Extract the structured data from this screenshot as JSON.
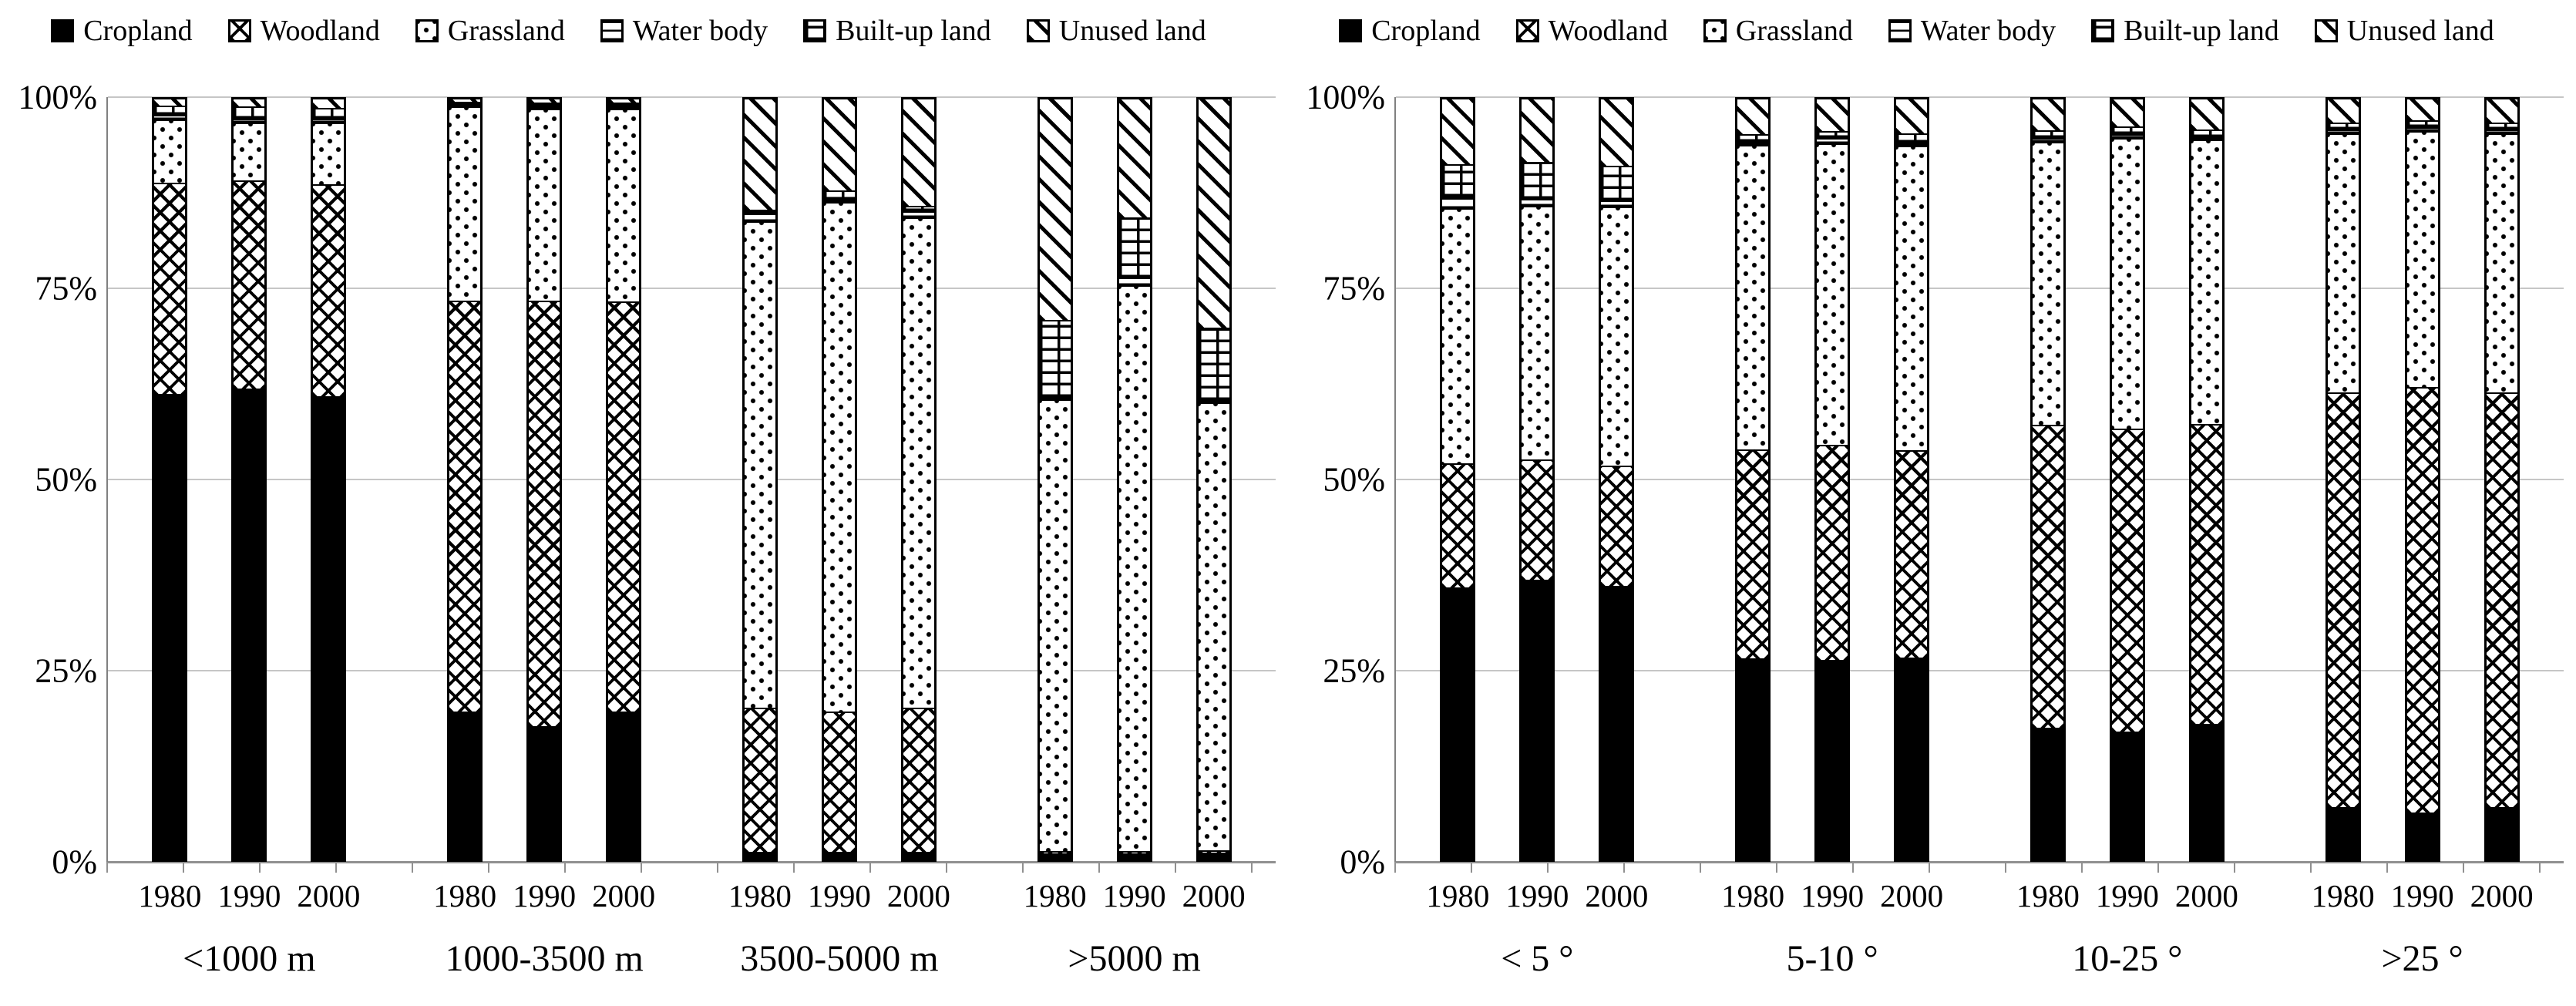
{
  "colors": {
    "foreground": "#000000",
    "background": "#ffffff",
    "gridline": "#c6c6c6",
    "axis": "#808080"
  },
  "legend": {
    "position": "top",
    "items": [
      {
        "label": "Cropland",
        "pattern": "solid"
      },
      {
        "label": "Woodland",
        "pattern": "crosshatch"
      },
      {
        "label": "Grassland",
        "pattern": "dots"
      },
      {
        "label": "Water body",
        "pattern": "hlines"
      },
      {
        "label": "Built-up land",
        "pattern": "brick"
      },
      {
        "label": "Unused land",
        "pattern": "diag"
      }
    ]
  },
  "chart_data": [
    {
      "type": "bar",
      "variant": "stacked-100-percent",
      "title": "",
      "xlabel": "",
      "ylabel": "",
      "ylim": [
        0,
        100
      ],
      "grid": true,
      "y_tick_labels": [
        "0%",
        "25%",
        "50%",
        "75%",
        "100%"
      ],
      "series_order": [
        "Cropland",
        "Woodland",
        "Grassland",
        "Water body",
        "Built-up land",
        "Unused land"
      ],
      "categories": [
        "<1000 m",
        "1000-3500 m",
        "3500-5000 m",
        ">5000 m"
      ],
      "years": [
        "1980",
        "1990",
        "2000"
      ],
      "groups": [
        {
          "category": "<1000 m",
          "bars": [
            {
              "year": "1980",
              "values": [
                61.3,
                27.7,
                8.4,
                0.6,
                1.2,
                0.8
              ]
            },
            {
              "year": "1990",
              "values": [
                62.0,
                27.3,
                7.7,
                0.5,
                1.6,
                0.9
              ]
            },
            {
              "year": "2000",
              "values": [
                61.0,
                27.8,
                8.2,
                0.5,
                1.4,
                1.1
              ]
            }
          ]
        },
        {
          "category": "1000-3500 m",
          "bars": [
            {
              "year": "1980",
              "values": [
                19.5,
                54.0,
                25.6,
                0.3,
                0.3,
                0.3
              ]
            },
            {
              "year": "1990",
              "values": [
                17.5,
                56.0,
                25.3,
                0.3,
                0.5,
                0.4
              ]
            },
            {
              "year": "2000",
              "values": [
                19.5,
                53.9,
                25.4,
                0.4,
                0.4,
                0.4
              ]
            }
          ]
        },
        {
          "category": "3500-5000 m",
          "bars": [
            {
              "year": "1980",
              "values": [
                1.0,
                19.0,
                64.0,
                1.0,
                0.5,
                14.5
              ]
            },
            {
              "year": "1990",
              "values": [
                1.0,
                18.5,
                67.0,
                0.3,
                1.2,
                12.0
              ]
            },
            {
              "year": "2000",
              "values": [
                1.0,
                19.0,
                64.5,
                0.8,
                0.7,
                14.0
              ]
            }
          ]
        },
        {
          "category": ">5000 m",
          "bars": [
            {
              "year": "1980",
              "values": [
                0.8,
                0.3,
                59.4,
                0.4,
                10.1,
                29.0
              ]
            },
            {
              "year": "1990",
              "values": [
                0.8,
                0.3,
                74.5,
                1.0,
                7.9,
                15.5
              ]
            },
            {
              "year": "2000",
              "values": [
                0.9,
                0.3,
                58.9,
                0.3,
                9.6,
                30.0
              ]
            }
          ]
        }
      ]
    },
    {
      "type": "bar",
      "variant": "stacked-100-percent",
      "title": "",
      "xlabel": "",
      "ylabel": "",
      "ylim": [
        0,
        100
      ],
      "grid": true,
      "y_tick_labels": [
        "0%",
        "25%",
        "50%",
        "75%",
        "100%"
      ],
      "series_order": [
        "Cropland",
        "Woodland",
        "Grassland",
        "Water body",
        "Built-up land",
        "Unused land"
      ],
      "categories": [
        "< 5 °",
        "5-10 °",
        "10-25 °",
        ">25 °"
      ],
      "years": [
        "1980",
        "1990",
        "2000"
      ],
      "groups": [
        {
          "category": "< 5 °",
          "bars": [
            {
              "year": "1980",
              "values": [
                35.8,
                16.3,
                33.6,
                1.5,
                4.3,
                8.5
              ]
            },
            {
              "year": "1990",
              "values": [
                36.8,
                15.8,
                33.4,
                0.9,
                4.9,
                8.2
              ]
            },
            {
              "year": "2000",
              "values": [
                36.0,
                15.8,
                34.1,
                0.8,
                4.6,
                8.7
              ]
            }
          ]
        },
        {
          "category": "5-10 °",
          "bars": [
            {
              "year": "1980",
              "values": [
                26.5,
                27.5,
                40.0,
                0.4,
                1.0,
                4.6
              ]
            },
            {
              "year": "1990",
              "values": [
                26.3,
                28.3,
                39.6,
                0.7,
                0.9,
                4.2
              ]
            },
            {
              "year": "2000",
              "values": [
                26.6,
                27.3,
                40.0,
                0.4,
                1.2,
                4.5
              ]
            }
          ]
        },
        {
          "category": "10-25 °",
          "bars": [
            {
              "year": "1980",
              "values": [
                17.3,
                39.9,
                37.2,
                0.5,
                1.0,
                4.1
              ]
            },
            {
              "year": "1990",
              "values": [
                16.8,
                39.9,
                38.2,
                0.5,
                1.0,
                3.6
              ]
            },
            {
              "year": "2000",
              "values": [
                17.8,
                39.5,
                37.4,
                0.3,
                1.0,
                4.0
              ]
            }
          ]
        },
        {
          "category": ">25 °",
          "bars": [
            {
              "year": "1980",
              "values": [
                6.9,
                54.6,
                34.0,
                0.5,
                1.0,
                3.0
              ]
            },
            {
              "year": "1990",
              "values": [
                6.2,
                56.0,
                33.6,
                0.5,
                1.0,
                2.7
              ]
            },
            {
              "year": "2000",
              "values": [
                6.9,
                54.6,
                34.0,
                0.5,
                1.0,
                3.0
              ]
            }
          ]
        }
      ]
    }
  ]
}
